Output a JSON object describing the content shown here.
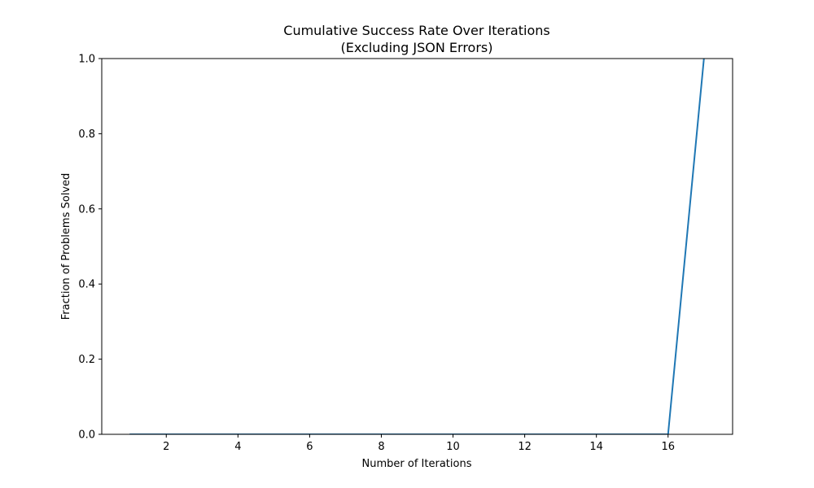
{
  "chart_data": {
    "type": "line",
    "title": "Cumulative Success Rate Over Iterations",
    "subtitle": "(Excluding JSON Errors)",
    "xlabel": "Number of Iterations",
    "ylabel": "Fraction of Problems Solved",
    "xlim": [
      0.2,
      17.8
    ],
    "ylim": [
      0.0,
      1.0
    ],
    "xticks": [
      2,
      4,
      6,
      8,
      10,
      12,
      14,
      16
    ],
    "yticks": [
      0.0,
      0.2,
      0.4,
      0.6,
      0.8,
      1.0
    ],
    "xtick_labels": [
      "2",
      "4",
      "6",
      "8",
      "10",
      "12",
      "14",
      "16"
    ],
    "ytick_labels": [
      "0.0",
      "0.2",
      "0.4",
      "0.6",
      "0.8",
      "1.0"
    ],
    "grid": false,
    "series": [
      {
        "color": "#1f77b4",
        "x": [
          1,
          2,
          3,
          4,
          5,
          6,
          7,
          8,
          9,
          10,
          11,
          12,
          13,
          14,
          15,
          16,
          17
        ],
        "y": [
          0,
          0,
          0,
          0,
          0,
          0,
          0,
          0,
          0,
          0,
          0,
          0,
          0,
          0,
          0,
          0,
          1.0
        ]
      }
    ]
  }
}
